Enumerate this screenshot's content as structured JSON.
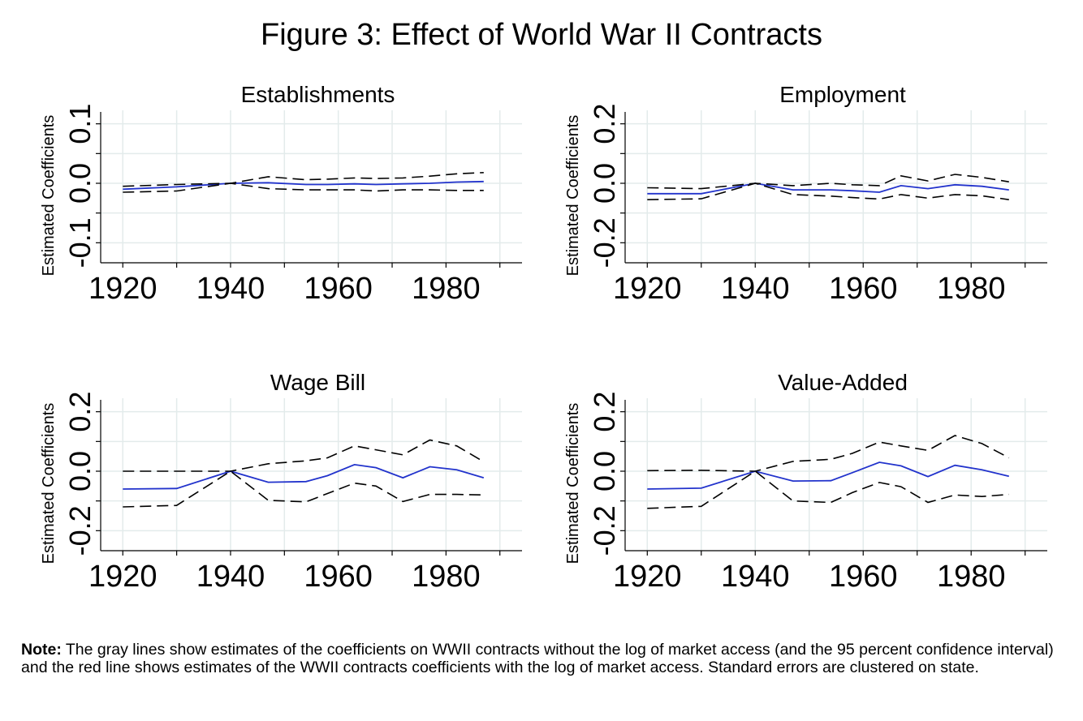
{
  "title": "Figure 3: Effect of World War II Contracts",
  "note": {
    "label": "Note:",
    "text": " The gray lines show estimates of the coefficients on WWII contracts without the log of market access (and the 95 percent confidence interval) and the red line shows estimates of the WWII contracts coefficients with the log of market access. Standard errors are clustered on state."
  },
  "colors": {
    "estimate": "#2233cc",
    "ci": "#000000",
    "grid": "#e3ebeb"
  },
  "chart_data": [
    {
      "type": "line",
      "title": "Establishments",
      "ylabel": "Estimated Coefficients",
      "xlim": [
        1918,
        1992
      ],
      "ylim": [
        -0.12,
        0.12
      ],
      "xticks": [
        1920,
        1940,
        1960,
        1980
      ],
      "yticks": [
        -0.1,
        0.0,
        0.1
      ],
      "ytick_labels": [
        "-0.1",
        "0.0",
        "0.1"
      ],
      "grid": true,
      "x": [
        1920,
        1930,
        1940,
        1947,
        1954,
        1958,
        1963,
        1967,
        1972,
        1977,
        1982,
        1987
      ],
      "series": [
        {
          "role": "estimate",
          "values": [
            -0.01,
            -0.006,
            0.0,
            0.001,
            -0.002,
            -0.002,
            -0.001,
            -0.002,
            -0.001,
            0.0,
            0.002,
            0.003
          ]
        },
        {
          "role": "ci_upper",
          "values": [
            -0.005,
            -0.002,
            0.0,
            0.011,
            0.006,
            0.007,
            0.009,
            0.008,
            0.009,
            0.012,
            0.016,
            0.018
          ]
        },
        {
          "role": "ci_lower",
          "values": [
            -0.015,
            -0.013,
            0.0,
            -0.009,
            -0.011,
            -0.011,
            -0.011,
            -0.013,
            -0.011,
            -0.011,
            -0.012,
            -0.012
          ]
        }
      ]
    },
    {
      "type": "line",
      "title": "Employment",
      "ylabel": "Estimated Coefficients",
      "xlim": [
        1918,
        1992
      ],
      "ylim": [
        -0.24,
        0.24
      ],
      "xticks": [
        1920,
        1940,
        1960,
        1980
      ],
      "yticks": [
        -0.2,
        0.0,
        0.2
      ],
      "ytick_labels": [
        "-0.2",
        "0.0",
        "0.2"
      ],
      "grid": true,
      "x": [
        1920,
        1930,
        1940,
        1947,
        1954,
        1958,
        1963,
        1967,
        1972,
        1977,
        1982,
        1987
      ],
      "series": [
        {
          "role": "estimate",
          "values": [
            -0.035,
            -0.035,
            0.0,
            -0.022,
            -0.022,
            -0.025,
            -0.03,
            -0.008,
            -0.018,
            -0.005,
            -0.01,
            -0.022
          ]
        },
        {
          "role": "ci_upper",
          "values": [
            -0.015,
            -0.018,
            0.0,
            -0.008,
            0.0,
            -0.005,
            -0.008,
            0.025,
            0.008,
            0.03,
            0.02,
            0.005
          ]
        },
        {
          "role": "ci_lower",
          "values": [
            -0.055,
            -0.052,
            0.0,
            -0.038,
            -0.043,
            -0.048,
            -0.053,
            -0.038,
            -0.05,
            -0.038,
            -0.042,
            -0.055
          ]
        }
      ]
    },
    {
      "type": "line",
      "title": "Wage Bill",
      "ylabel": "Estimated Coefficients",
      "xlim": [
        1918,
        1992
      ],
      "ylim": [
        -0.24,
        0.24
      ],
      "xticks": [
        1920,
        1940,
        1960,
        1980
      ],
      "yticks": [
        -0.2,
        0.0,
        0.2
      ],
      "ytick_labels": [
        "-0.2",
        "0.0",
        "0.2"
      ],
      "grid": true,
      "x": [
        1920,
        1930,
        1940,
        1947,
        1954,
        1958,
        1963,
        1967,
        1972,
        1977,
        1982,
        1987
      ],
      "series": [
        {
          "role": "estimate",
          "values": [
            -0.06,
            -0.058,
            0.0,
            -0.037,
            -0.035,
            -0.015,
            0.022,
            0.012,
            -0.022,
            0.015,
            0.005,
            -0.022
          ]
        },
        {
          "role": "ci_upper",
          "values": [
            0.0,
            0.0,
            0.0,
            0.025,
            0.035,
            0.045,
            0.085,
            0.072,
            0.055,
            0.105,
            0.085,
            0.032
          ]
        },
        {
          "role": "ci_lower",
          "values": [
            -0.12,
            -0.115,
            0.0,
            -0.098,
            -0.103,
            -0.075,
            -0.04,
            -0.05,
            -0.102,
            -0.078,
            -0.078,
            -0.08
          ]
        }
      ]
    },
    {
      "type": "line",
      "title": "Value-Added",
      "ylabel": "Estimated Coefficients",
      "xlim": [
        1918,
        1992
      ],
      "ylim": [
        -0.24,
        0.24
      ],
      "xticks": [
        1920,
        1940,
        1960,
        1980
      ],
      "yticks": [
        -0.2,
        0.0,
        0.2
      ],
      "ytick_labels": [
        "-0.2",
        "0.0",
        "0.2"
      ],
      "grid": true,
      "x": [
        1920,
        1930,
        1940,
        1947,
        1954,
        1958,
        1963,
        1967,
        1972,
        1977,
        1982,
        1987
      ],
      "series": [
        {
          "role": "estimate",
          "values": [
            -0.06,
            -0.057,
            0.0,
            -0.033,
            -0.032,
            -0.005,
            0.03,
            0.018,
            -0.018,
            0.02,
            0.005,
            -0.017
          ]
        },
        {
          "role": "ci_upper",
          "values": [
            0.002,
            0.003,
            0.0,
            0.033,
            0.04,
            0.06,
            0.098,
            0.085,
            0.07,
            0.12,
            0.093,
            0.045
          ]
        },
        {
          "role": "ci_lower",
          "values": [
            -0.125,
            -0.118,
            0.0,
            -0.1,
            -0.105,
            -0.072,
            -0.038,
            -0.052,
            -0.105,
            -0.08,
            -0.085,
            -0.078
          ]
        }
      ]
    }
  ]
}
